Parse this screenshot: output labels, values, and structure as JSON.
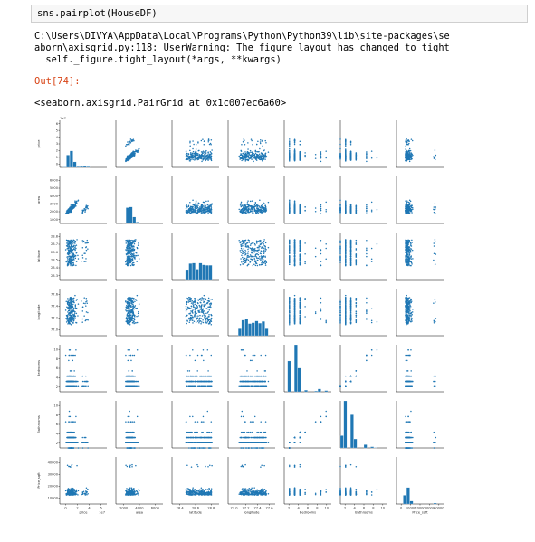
{
  "cell": {
    "code": "sns.pairplot(HouseDF)",
    "warning_lines": [
      "C:\\Users\\DIVYA\\AppData\\Local\\Programs\\Python\\Python39\\lib\\site-packages\\se",
      "aborn\\axisgrid.py:118: UserWarning: The figure layout has changed to tight",
      "  self._figure.tight_layout(*args, **kwargs)"
    ],
    "out_prompt": "Out[74]:",
    "repr": "<seaborn.axisgrid.PairGrid at 0x1c007ec6a60>"
  },
  "chart_data": {
    "type": "scatter",
    "variables": [
      "price",
      "area",
      "latitude",
      "longitude",
      "Bedrooms",
      "Bathrooms",
      "Price_sqft"
    ],
    "color": "#1f77b4",
    "offset_label": "1e7",
    "ranges": {
      "price": [
        0,
        6.5
      ],
      "area": [
        0,
        7000
      ],
      "latitude": [
        28.2,
        28.8
      ],
      "longitude": [
        76.8,
        77.6
      ],
      "Bedrooms": [
        1,
        10
      ],
      "Bathrooms": [
        1,
        10
      ],
      "Price_sqft": [
        0,
        42000
      ]
    },
    "y_ticks": {
      "price": [
        "0",
        "1",
        "2",
        "3",
        "4",
        "5",
        "6"
      ],
      "area": [
        "1000",
        "2000",
        "3000",
        "4000",
        "5000",
        "6000"
      ],
      "latitude": [
        "28.3",
        "28.4",
        "28.5",
        "28.6",
        "28.7",
        "28.8"
      ],
      "longitude": [
        "77.0",
        "77.2",
        "77.4",
        "77.6"
      ],
      "Bedrooms": [
        "2",
        "4",
        "6",
        "8",
        "10"
      ],
      "Bathrooms": [
        "2",
        "4",
        "6",
        "8",
        "10"
      ],
      "Price_sqft": [
        "10000",
        "20000",
        "30000",
        "40000"
      ]
    },
    "x_ticks": {
      "price": [
        "0",
        "2",
        "4",
        "6"
      ],
      "area": [
        "2000",
        "4000",
        "6000"
      ],
      "latitude": [
        "28.4",
        "28.6",
        "28.8"
      ],
      "longitude": [
        "77.0",
        "77.2",
        "77.4",
        "77.6"
      ],
      "Bedrooms": [
        "2",
        "4",
        "6",
        "8",
        "10"
      ],
      "Bathrooms": [
        "2",
        "4",
        "6",
        "8",
        "10"
      ],
      "Price_sqft": [
        "0",
        "10000",
        "20000",
        "30000",
        "40000"
      ]
    }
  }
}
